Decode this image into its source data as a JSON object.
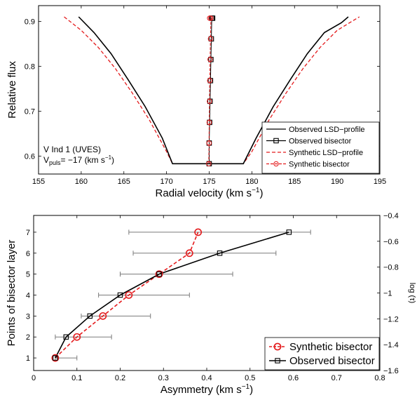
{
  "chart_data": [
    {
      "type": "line",
      "xlabel": "Radial velocity (km s",
      "xlabel_sup": "−1",
      "xlabel_end": ")",
      "ylabel": "Relative flux",
      "xlim": [
        155,
        195
      ],
      "ylim": [
        0.56,
        0.935
      ],
      "xticks": [
        155,
        160,
        165,
        170,
        175,
        180,
        185,
        190,
        195
      ],
      "yticks": [
        0.6,
        0.7,
        0.8,
        0.9
      ],
      "xtick_labels": [
        "155",
        "160",
        "165",
        "170",
        "175",
        "180",
        "185",
        "190",
        "195"
      ],
      "ytick_labels": [
        "0.6",
        "0.7",
        "0.8",
        "0.9"
      ],
      "annotation_line1": "V Ind 1 (UVES)",
      "annotation_v": "V",
      "annotation_sub": "puls",
      "annotation_rest": "= −17 (km s",
      "annotation_sup": "−1",
      "annotation_end": ")",
      "legend_position": "bottom-right",
      "series": [
        {
          "name": "Observed LSD−profile",
          "color": "#000000",
          "x": [
            159.7,
            161.5,
            163.5,
            165.5,
            167.5,
            169.5,
            170.7,
            175.0,
            179.0,
            180.5,
            182.5,
            184.5,
            186.5,
            188.5,
            190.5,
            191.3
          ],
          "y": [
            0.91,
            0.875,
            0.828,
            0.77,
            0.71,
            0.64,
            0.583,
            0.583,
            0.583,
            0.64,
            0.71,
            0.77,
            0.828,
            0.875,
            0.897,
            0.91
          ]
        },
        {
          "name": "Observed bisector",
          "color": "#000000",
          "x": [
            175.0,
            175.0,
            175.05,
            175.1,
            175.15,
            175.2,
            175.25,
            175.3,
            175.4
          ],
          "y": [
            0.583,
            0.629,
            0.675,
            0.722,
            0.768,
            0.815,
            0.861,
            0.907,
            0.907
          ]
        },
        {
          "name": "Synthetic LSD−profile",
          "color": "#e41a1c",
          "x": [
            158.0,
            160.0,
            162.0,
            164.0,
            166.0,
            168.0,
            170.0,
            170.7,
            175.0,
            179.0,
            180.0,
            182.0,
            184.0,
            186.0,
            188.0,
            190.0,
            192.6
          ],
          "y": [
            0.91,
            0.88,
            0.842,
            0.795,
            0.74,
            0.68,
            0.61,
            0.583,
            0.583,
            0.583,
            0.61,
            0.68,
            0.74,
            0.795,
            0.842,
            0.88,
            0.91
          ]
        },
        {
          "name": "Synthetic bisector",
          "color": "#e41a1c",
          "x": [
            174.95,
            174.98,
            175.0,
            175.03,
            175.06,
            175.1,
            175.15,
            175.2,
            175.05
          ],
          "y": [
            0.583,
            0.629,
            0.675,
            0.722,
            0.768,
            0.815,
            0.861,
            0.907,
            0.907
          ]
        }
      ]
    },
    {
      "type": "line",
      "xlabel": "Asymmetry (km s",
      "xlabel_sup": "−1",
      "xlabel_end": ")",
      "ylabel": "Points of bisector layer",
      "y2label": "log (τ)",
      "xlim": [
        0,
        0.8
      ],
      "ylim": [
        0.4,
        7.8
      ],
      "y2lim": [
        -1.6,
        -0.4
      ],
      "xticks": [
        0,
        0.1,
        0.2,
        0.3,
        0.4,
        0.5,
        0.6,
        0.7,
        0.8
      ],
      "xtick_labels": [
        "0",
        "0.1",
        "0.2",
        "0.3",
        "0.4",
        "0.5",
        "0.6",
        "0.7",
        "0.8"
      ],
      "yticks": [
        1,
        2,
        3,
        4,
        5,
        6,
        7
      ],
      "ytick_labels": [
        "1",
        "2",
        "3",
        "4",
        "5",
        "6",
        "7"
      ],
      "y2ticks": [
        -1.6,
        -1.4,
        -1.2,
        -1.0,
        -0.8,
        -0.6,
        -0.4
      ],
      "y2tick_labels": [
        "−1.6",
        "−1.4",
        "−1.2",
        "−1",
        "−0.8",
        "−0.6",
        "−0.4"
      ],
      "legend_position": "bottom-right",
      "series": [
        {
          "name": "Synthetic bisector",
          "color": "#e41a1c",
          "x": [
            0.05,
            0.1,
            0.16,
            0.22,
            0.29,
            0.36,
            0.38
          ],
          "y": [
            1,
            2,
            3,
            4,
            5,
            6,
            7
          ]
        },
        {
          "name": "Observed bisector",
          "color": "#000000",
          "x": [
            0.05,
            0.075,
            0.13,
            0.2,
            0.29,
            0.43,
            0.59
          ],
          "y": [
            1,
            2,
            3,
            4,
            5,
            6,
            7
          ],
          "err_lo": [
            0.05,
            0.05,
            0.11,
            0.15,
            0.2,
            0.23,
            0.22
          ],
          "err_hi": [
            0.1,
            0.18,
            0.27,
            0.36,
            0.46,
            0.56,
            0.64
          ]
        }
      ]
    }
  ]
}
